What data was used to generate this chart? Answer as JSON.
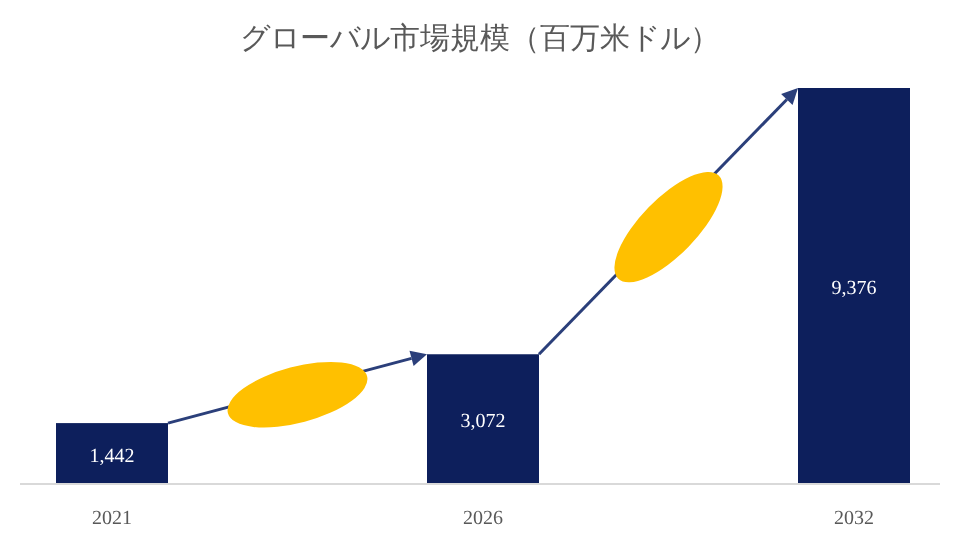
{
  "chart_data": {
    "type": "bar",
    "title": "グローバル市場規模（百万米ドル）",
    "categories": [
      "2021",
      "2026",
      "2032"
    ],
    "values": [
      1442,
      3072,
      9376
    ],
    "color": "#0d1f5c",
    "data_labels": true,
    "value_labels": [
      "1,442",
      "3,072",
      "9,376"
    ]
  }
}
